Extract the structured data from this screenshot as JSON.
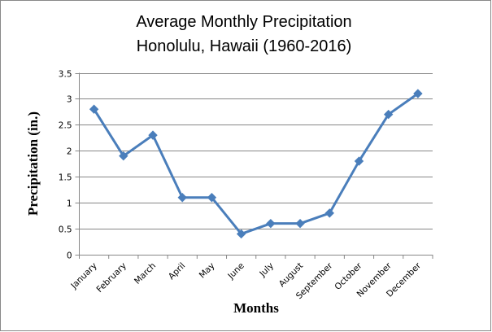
{
  "chart_data": {
    "type": "line",
    "title": [
      "Average Monthly Precipitation",
      "Honolulu, Hawaii (1960-2016)"
    ],
    "xlabel": "Months",
    "ylabel": "Precipitation (in.)",
    "categories": [
      "January",
      "February",
      "March",
      "April",
      "May",
      "June",
      "July",
      "August",
      "September",
      "October",
      "November",
      "December"
    ],
    "values": [
      2.8,
      1.9,
      2.3,
      1.1,
      1.1,
      0.4,
      0.6,
      0.6,
      0.8,
      1.8,
      2.7,
      3.1
    ],
    "ylim": [
      0,
      3.5
    ],
    "yticks": [
      "0",
      "0.5",
      "1",
      "1.5",
      "2",
      "2.5",
      "3",
      "3.5"
    ],
    "grid": true,
    "legend": "none",
    "marker": "diamond",
    "color": "#4A7EBB"
  }
}
